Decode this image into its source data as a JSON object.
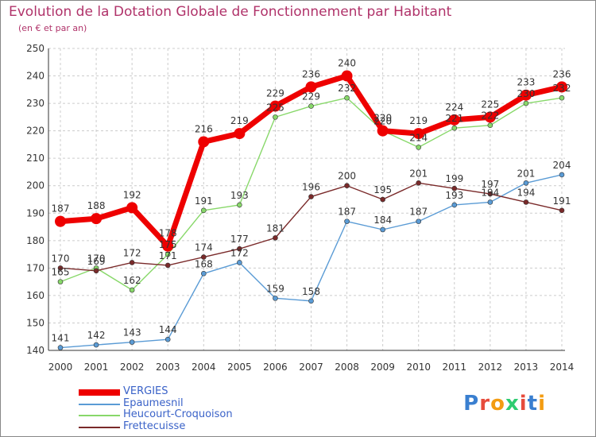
{
  "title": "Evolution de la Dotation Globale de Fonctionnement par Habitant",
  "subtitle": "(en € et par an)",
  "logo": {
    "text": "Proxiti",
    "colors": [
      "#3a7fd0",
      "#e74c3c",
      "#f39c12",
      "#2ecc71",
      "#e74c3c",
      "#3a7fd0",
      "#f39c12"
    ]
  },
  "chart_data": {
    "type": "line",
    "x": [
      2000,
      2001,
      2002,
      2003,
      2004,
      2005,
      2006,
      2007,
      2008,
      2009,
      2010,
      2011,
      2012,
      2013,
      2014
    ],
    "ylim": [
      140,
      250
    ],
    "yticks": [
      140,
      150,
      160,
      170,
      180,
      190,
      200,
      210,
      220,
      230,
      240,
      250
    ],
    "grid": true,
    "legend_position": "bottom-left",
    "series": [
      {
        "name": "VERGIES",
        "color": "#ee0000",
        "values": [
          187,
          188,
          192,
          178,
          216,
          219,
          229,
          236,
          240,
          220,
          219,
          224,
          225,
          233,
          236
        ]
      },
      {
        "name": "Epaumesnil",
        "color": "#5a9bd5",
        "values": [
          141,
          142,
          143,
          144,
          168,
          172,
          159,
          158,
          187,
          184,
          187,
          193,
          194,
          201,
          204
        ]
      },
      {
        "name": "Heucourt-Croquoison",
        "color": "#88d86a",
        "values": [
          165,
          170,
          162,
          175,
          191,
          193,
          225,
          229,
          232,
          220,
          214,
          221,
          222,
          230,
          232
        ]
      },
      {
        "name": "Frettecuisse",
        "color": "#7a2a2a",
        "values": [
          170,
          169,
          172,
          171,
          174,
          177,
          181,
          196,
          200,
          195,
          201,
          199,
          197,
          194,
          191
        ]
      }
    ]
  }
}
